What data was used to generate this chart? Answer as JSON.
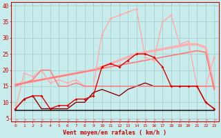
{
  "x": [
    0,
    1,
    2,
    3,
    4,
    5,
    6,
    7,
    8,
    9,
    10,
    11,
    12,
    13,
    14,
    15,
    16,
    17,
    18,
    19,
    20,
    21,
    22,
    23
  ],
  "background_color": "#c8ecec",
  "grid_color": "#aad4d4",
  "xlabel": "Vent moyen/en rafales ( km/h )",
  "xlabel_color": "#cc0000",
  "tick_color": "#cc0000",
  "ylim": [
    4,
    41
  ],
  "yticks": [
    5,
    10,
    15,
    20,
    25,
    30,
    35,
    40
  ],
  "color_pink_light": "#ffaaaa",
  "color_pink_mid": "#ff7777",
  "color_red": "#dd0000",
  "color_dark": "#880000",
  "color_black": "#222222",
  "color_arrow": "#ff8888",
  "gust_y": [
    8,
    19,
    18,
    20,
    16,
    17,
    16,
    17,
    15,
    15,
    31,
    36,
    37,
    38,
    39,
    24,
    23,
    35,
    37,
    28,
    29,
    15,
    15,
    24
  ],
  "trend1_y": [
    15.5,
    16.0,
    16.5,
    17.0,
    17.5,
    18.0,
    18.5,
    19.0,
    19.5,
    20.0,
    21.0,
    22.0,
    23.0,
    24.0,
    25.0,
    25.5,
    26.0,
    26.5,
    27.0,
    27.5,
    28.0,
    28.0,
    27.0,
    14.5
  ],
  "trend2_y": [
    15.5,
    16.0,
    16.5,
    17.0,
    17.5,
    18.0,
    18.5,
    19.0,
    19.5,
    20.0,
    20.5,
    21.0,
    21.5,
    22.0,
    22.5,
    23.0,
    23.5,
    24.0,
    24.5,
    25.0,
    25.5,
    26.0,
    25.5,
    14.0
  ],
  "mean_y": [
    8,
    11,
    12,
    12,
    8,
    9,
    9,
    11,
    11,
    12,
    21,
    22,
    21,
    23,
    25,
    25,
    24,
    21,
    15,
    15,
    15,
    15,
    10,
    8
  ],
  "flat_y": [
    7.5,
    7.5,
    7.5,
    7.5,
    7.5,
    7.5,
    7.5,
    7.5,
    7.5,
    7.5,
    7.5,
    7.5,
    7.5,
    7.5,
    7.5,
    7.5,
    7.5,
    7.5,
    7.5,
    7.5,
    7.5,
    7.5,
    7.5,
    7.5
  ],
  "lower_y": [
    8,
    11,
    12,
    8,
    8,
    8,
    8,
    10,
    10,
    13,
    14,
    13,
    12,
    14,
    15,
    16,
    15,
    15,
    15,
    15,
    15,
    15,
    10,
    8
  ],
  "upper_flat_y": [
    15,
    16,
    17,
    20,
    20,
    15,
    15,
    16,
    15,
    15,
    15,
    15,
    15,
    15,
    15,
    15,
    15,
    15,
    15,
    15,
    15,
    15,
    15,
    15
  ]
}
